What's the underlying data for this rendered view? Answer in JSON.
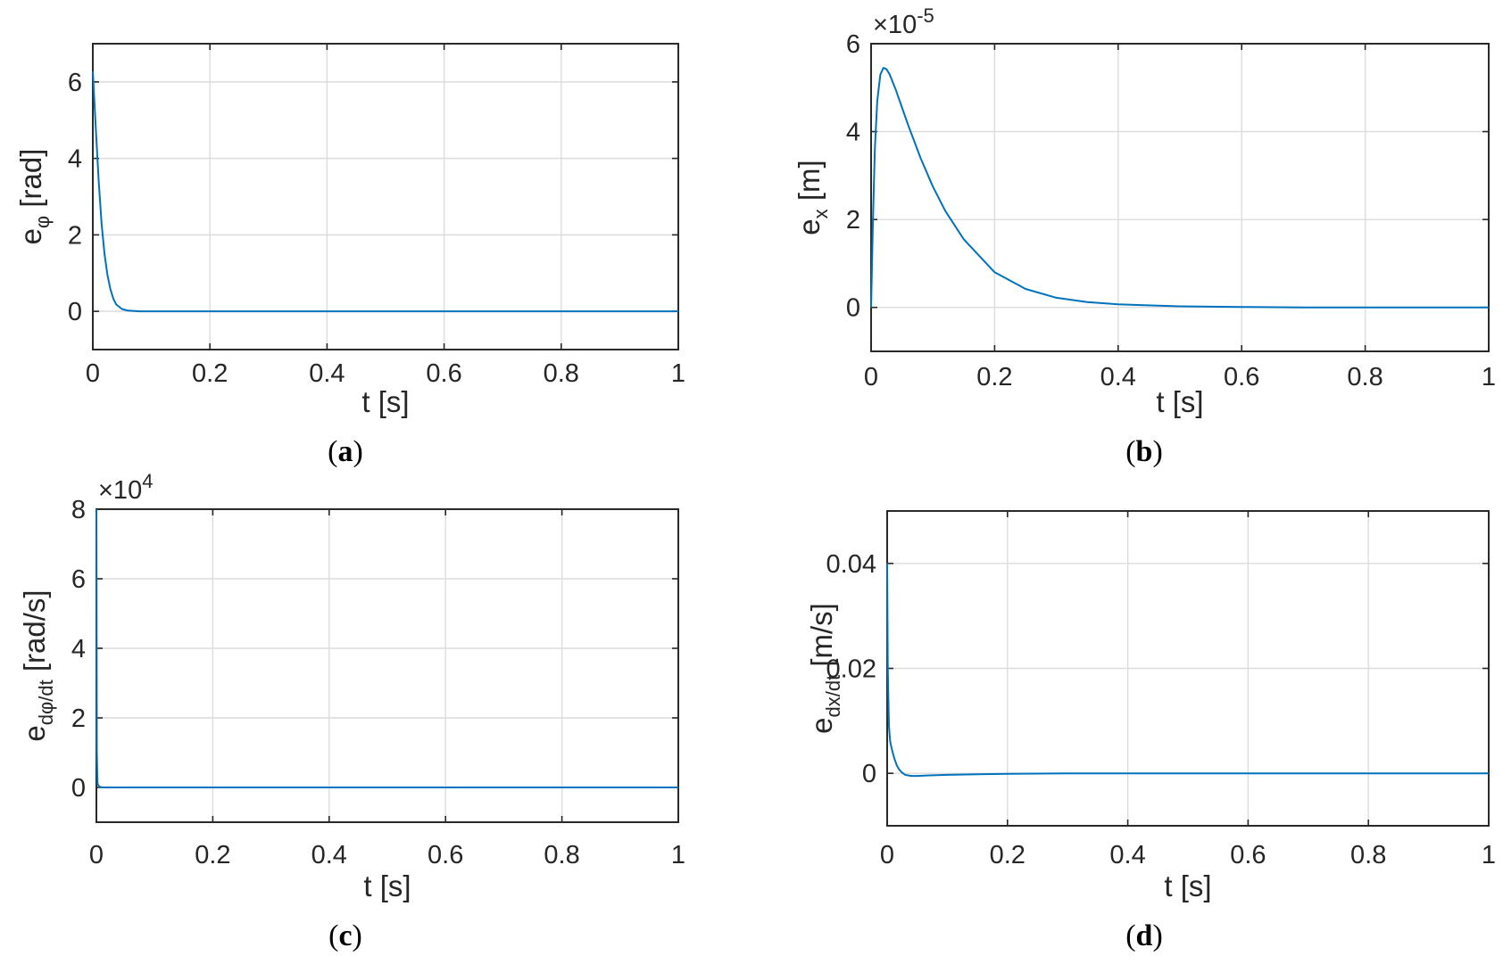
{
  "colors": {
    "series": "#0072bd",
    "axis": "#262626",
    "grid": "#dcdcdc"
  },
  "chart_data": [
    {
      "panel": "a",
      "type": "line",
      "caption_letter": "a",
      "xlabel": "t [s]",
      "ylabel": {
        "main": "e",
        "sub": "φ",
        "unit": " [rad]"
      },
      "exponent": null,
      "xlim": [
        0,
        1
      ],
      "ylim": [
        -1,
        7
      ],
      "xticks": [
        0,
        0.2,
        0.4,
        0.6,
        0.8,
        1
      ],
      "yticks": [
        0,
        2,
        4,
        6
      ],
      "xtick_labels": [
        "0",
        "0.2",
        "0.4",
        "0.6",
        "0.8",
        "1"
      ],
      "ytick_labels": [
        "0",
        "2",
        "4",
        "6"
      ],
      "grid": true,
      "series": [
        {
          "x": [
            0,
            0.005,
            0.01,
            0.015,
            0.02,
            0.025,
            0.03,
            0.035,
            0.04,
            0.05,
            0.06,
            0.08,
            0.1,
            0.2,
            0.4,
            0.6,
            0.8,
            1.0
          ],
          "y": [
            6.28,
            4.8,
            3.4,
            2.3,
            1.5,
            0.95,
            0.58,
            0.33,
            0.18,
            0.06,
            0.02,
            0.0,
            0.0,
            0.0,
            0.0,
            0.0,
            0.0,
            0.0
          ]
        }
      ]
    },
    {
      "panel": "b",
      "type": "line",
      "caption_letter": "b",
      "xlabel": "t [s]",
      "ylabel": {
        "main": "e",
        "sub": "x",
        "unit": " [m]"
      },
      "exponent": {
        "base": "×10",
        "power": "-5"
      },
      "xlim": [
        0,
        1
      ],
      "ylim": [
        -1,
        6
      ],
      "xticks": [
        0,
        0.2,
        0.4,
        0.6,
        0.8,
        1
      ],
      "yticks": [
        0,
        2,
        4,
        6
      ],
      "xtick_labels": [
        "0",
        "0.2",
        "0.4",
        "0.6",
        "0.8",
        "1"
      ],
      "ytick_labels": [
        "0",
        "2",
        "4",
        "6"
      ],
      "grid": true,
      "series": [
        {
          "x": [
            0,
            0.003,
            0.006,
            0.01,
            0.015,
            0.02,
            0.025,
            0.03,
            0.04,
            0.05,
            0.06,
            0.08,
            0.1,
            0.12,
            0.15,
            0.2,
            0.25,
            0.3,
            0.35,
            0.4,
            0.5,
            0.6,
            0.7,
            0.8,
            0.9,
            1.0
          ],
          "y": [
            0.0,
            2.0,
            3.6,
            4.7,
            5.3,
            5.45,
            5.42,
            5.3,
            4.95,
            4.55,
            4.15,
            3.4,
            2.75,
            2.2,
            1.55,
            0.8,
            0.42,
            0.22,
            0.12,
            0.07,
            0.025,
            0.01,
            0.0,
            0.0,
            0.0,
            0.0
          ]
        }
      ]
    },
    {
      "panel": "c",
      "type": "line",
      "caption_letter": "c",
      "xlabel": "t [s]",
      "ylabel": {
        "main": "e",
        "sub": "dφ/dt",
        "unit": " [rad/s]"
      },
      "exponent": {
        "base": "×10",
        "power": "4"
      },
      "xlim": [
        0,
        1
      ],
      "ylim": [
        -1,
        8
      ],
      "xticks": [
        0,
        0.2,
        0.4,
        0.6,
        0.8,
        1
      ],
      "yticks": [
        0,
        2,
        4,
        6,
        8
      ],
      "xtick_labels": [
        "0",
        "0.2",
        "0.4",
        "0.6",
        "0.8",
        "1"
      ],
      "ytick_labels": [
        "0",
        "2",
        "4",
        "6",
        "8"
      ],
      "grid": true,
      "series": [
        {
          "x": [
            0,
            0.0003,
            0.0008,
            0.002,
            0.005,
            0.01,
            0.2,
            0.4,
            0.6,
            0.8,
            1.0
          ],
          "y": [
            8.0,
            6.0,
            1.0,
            0.1,
            0.02,
            0.0,
            0.0,
            0.0,
            0.0,
            0.0,
            0.0
          ]
        }
      ]
    },
    {
      "panel": "d",
      "type": "line",
      "caption_letter": "d",
      "xlabel": "t [s]",
      "ylabel": {
        "main": "e",
        "sub": "dx/dt",
        "unit": " [m/s]"
      },
      "exponent": null,
      "xlim": [
        0,
        1
      ],
      "ylim": [
        -0.01,
        0.05
      ],
      "xticks": [
        0,
        0.2,
        0.4,
        0.6,
        0.8,
        1
      ],
      "yticks": [
        0,
        0.02,
        0.04
      ],
      "xtick_labels": [
        "0",
        "0.2",
        "0.4",
        "0.6",
        "0.8",
        "1"
      ],
      "ytick_labels": [
        "0",
        "0.02",
        "0.04"
      ],
      "grid": true,
      "series": [
        {
          "x": [
            0,
            0.001,
            0.003,
            0.005,
            0.008,
            0.012,
            0.016,
            0.02,
            0.025,
            0.03,
            0.04,
            0.05,
            0.07,
            0.1,
            0.15,
            0.2,
            0.3,
            0.4,
            0.6,
            0.8,
            1.0
          ],
          "y": [
            0.04,
            0.02,
            0.009,
            0.006,
            0.0045,
            0.0028,
            0.0015,
            0.0007,
            0.0001,
            -0.0003,
            -0.0005,
            -0.0005,
            -0.0004,
            -0.0003,
            -0.0002,
            -0.0001,
            0.0,
            0.0,
            0.0,
            0.0,
            0.0
          ]
        }
      ]
    }
  ]
}
